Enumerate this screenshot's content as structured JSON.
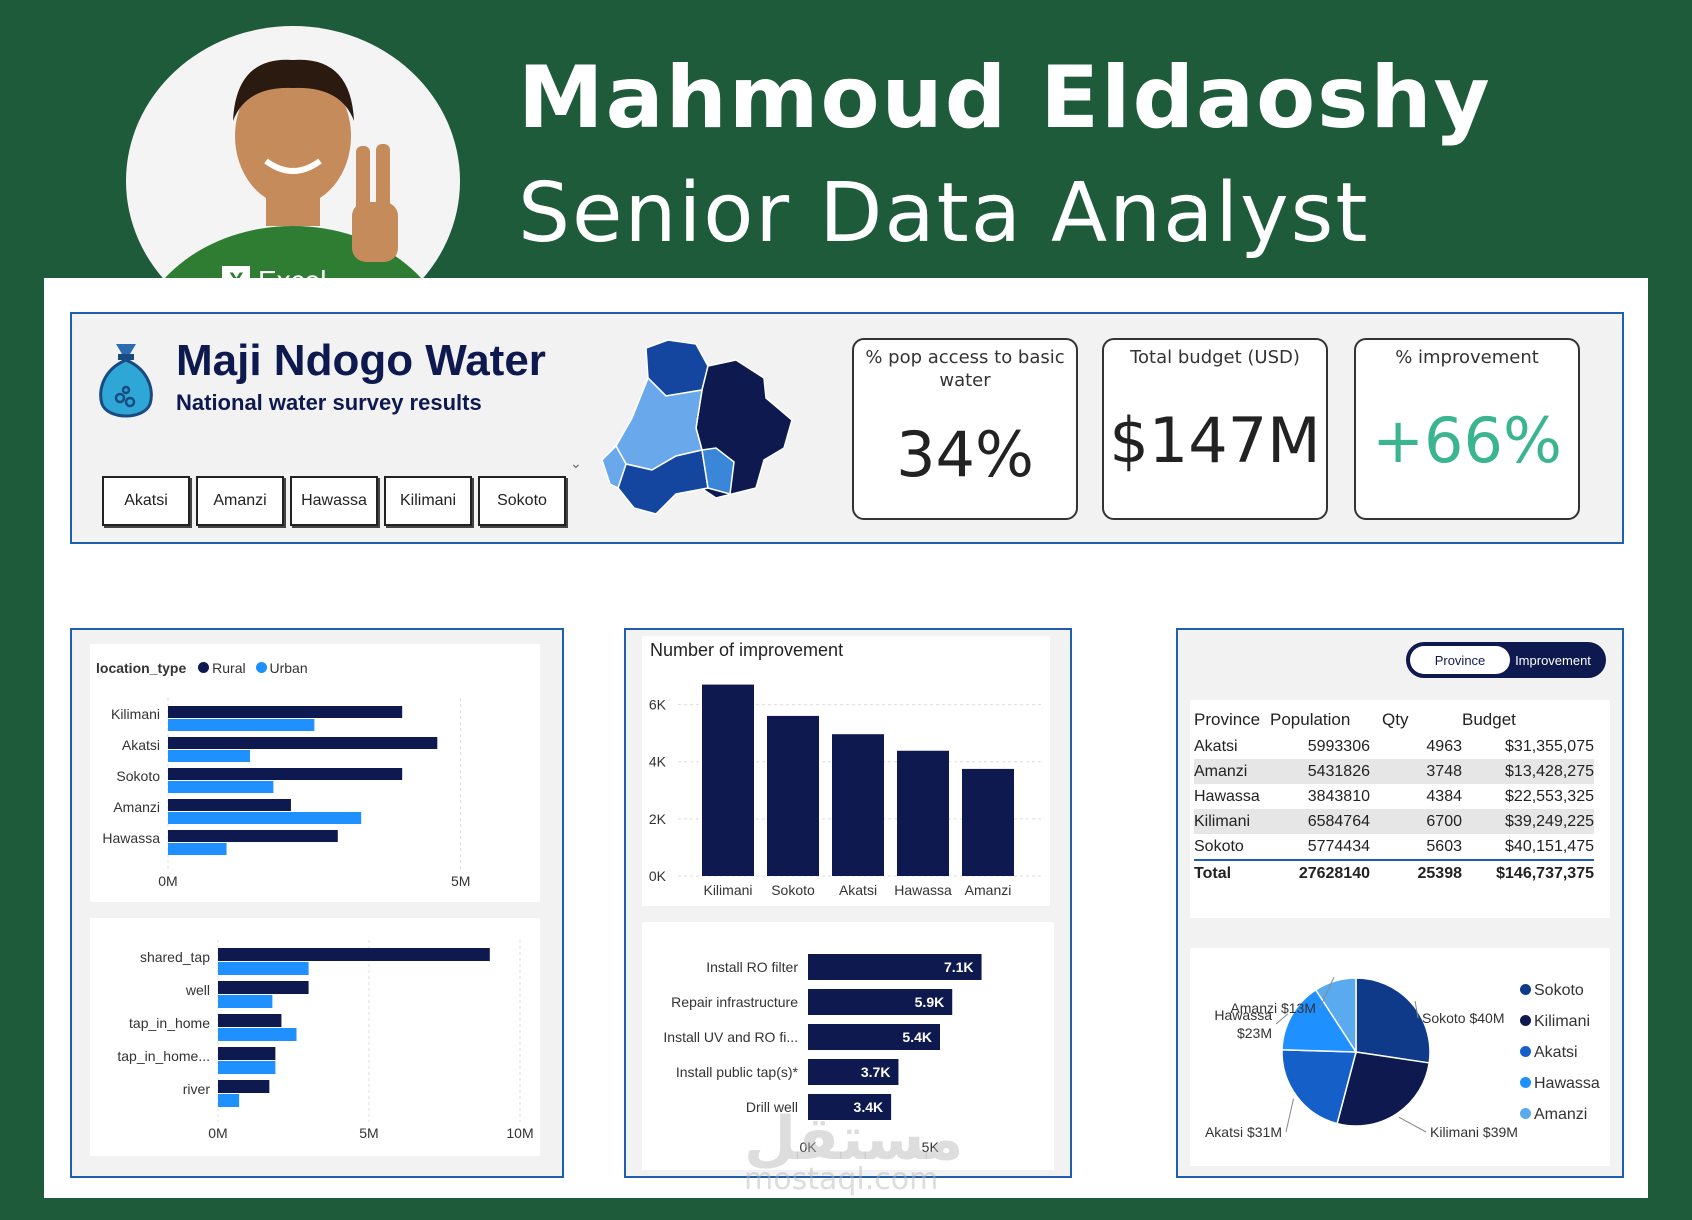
{
  "header": {
    "name": "Mahmoud Eldaoshy",
    "role": "Senior Data Analyst",
    "badge": "Excel"
  },
  "report": {
    "title": "Maji Ndogo Water",
    "subtitle": "National water survey results",
    "slicers": [
      "Akatsi",
      "Amanzi",
      "Hawassa",
      "Kilimani",
      "Sokoto"
    ]
  },
  "kpis": [
    {
      "label": "% pop access to basic water",
      "value": "34%",
      "color": "#222222"
    },
    {
      "label": "Total budget (USD)",
      "value": "$147M",
      "color": "#222222"
    },
    {
      "label": "% improvement",
      "value": "+66%",
      "color": "#3bb58f"
    }
  ],
  "colors": {
    "dark": "#0e1a4f",
    "light": "#1e90ff",
    "accent": "#3bb58f",
    "border": "#1f5fb0"
  },
  "location_chart": {
    "legend_title": "location_type",
    "series_names": [
      "Rural",
      "Urban"
    ]
  },
  "toggle": {
    "option1": "Province",
    "option2": "Improvement"
  },
  "table": {
    "headers": [
      "Province",
      "Population",
      "Qty",
      "Budget"
    ],
    "rows": [
      [
        "Akatsi",
        "5993306",
        "4963",
        "$31,355,075"
      ],
      [
        "Amanzi",
        "5431826",
        "3748",
        "$13,428,275"
      ],
      [
        "Hawassa",
        "3843810",
        "4384",
        "$22,553,325"
      ],
      [
        "Kilimani",
        "6584764",
        "6700",
        "$39,249,225"
      ],
      [
        "Sokoto",
        "5774434",
        "5603",
        "$40,151,475"
      ]
    ],
    "total": [
      "Total",
      "27628140",
      "25398",
      "$146,737,375"
    ]
  },
  "pie_legend": [
    "Sokoto",
    "Kilimani",
    "Akatsi",
    "Hawassa",
    "Amanzi"
  ],
  "watermark": {
    "arabic": "مستقل",
    "latin": "mostaql.com"
  },
  "chart_data": [
    {
      "type": "bar",
      "orientation": "horizontal",
      "legend_title": "location_type",
      "categories": [
        "Kilimani",
        "Akatsi",
        "Sokoto",
        "Amanzi",
        "Hawassa"
      ],
      "series": [
        {
          "name": "Rural",
          "values": [
            4.0,
            4.6,
            4.0,
            2.1,
            2.9
          ],
          "color": "#0e1a4f"
        },
        {
          "name": "Urban",
          "values": [
            2.5,
            1.4,
            1.8,
            3.3,
            1.0
          ],
          "color": "#1e90ff"
        }
      ],
      "xticks": [
        "0M",
        "5M"
      ],
      "xlim": [
        0,
        5.5
      ]
    },
    {
      "type": "bar",
      "orientation": "horizontal",
      "categories": [
        "shared_tap",
        "well",
        "tap_in_home",
        "tap_in_home...",
        "river"
      ],
      "series": [
        {
          "name": "Rural",
          "values": [
            9.0,
            3.0,
            2.1,
            1.9,
            1.7
          ],
          "color": "#0e1a4f"
        },
        {
          "name": "Urban",
          "values": [
            3.0,
            1.8,
            2.6,
            1.9,
            0.7
          ],
          "color": "#1e90ff"
        }
      ],
      "xticks": [
        "0M",
        "5M",
        "10M"
      ],
      "xlim": [
        0,
        10
      ]
    },
    {
      "type": "bar",
      "title": "Number of improvement",
      "categories": [
        "Kilimani",
        "Sokoto",
        "Akatsi",
        "Hawassa",
        "Amanzi"
      ],
      "values": [
        6700,
        5603,
        4963,
        4384,
        3748
      ],
      "yticks": [
        "0K",
        "2K",
        "4K",
        "6K"
      ],
      "ylim": [
        0,
        7000
      ],
      "color": "#0e1a4f"
    },
    {
      "type": "bar",
      "orientation": "horizontal",
      "categories": [
        "Install RO filter",
        "Repair infrastructure",
        "Install UV and RO fi...",
        "Install public tap(s)*",
        "Drill well"
      ],
      "values": [
        7100,
        5900,
        5400,
        3700,
        3400
      ],
      "labels": [
        "7.1K",
        "5.9K",
        "5.4K",
        "3.7K",
        "3.4K"
      ],
      "xticks": [
        "0K",
        "5K"
      ],
      "xlim": [
        0,
        9000
      ],
      "color": "#0e1a4f"
    },
    {
      "type": "pie",
      "categories": [
        "Sokoto",
        "Kilimani",
        "Akatsi",
        "Hawassa",
        "Amanzi"
      ],
      "values": [
        40151475,
        39249225,
        31355075,
        22553325,
        13428275
      ],
      "labels": [
        "Sokoto $40M",
        "Kilimani $39M",
        "Akatsi $31M",
        "Hawassa $23M",
        "Amanzi $13M"
      ],
      "colors": [
        "#0f3a8a",
        "#0e1a4f",
        "#1560c8",
        "#1e90ff",
        "#5aaaf0"
      ]
    }
  ]
}
